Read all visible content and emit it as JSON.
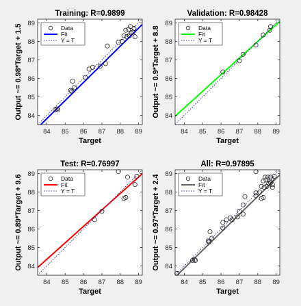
{
  "figure": {
    "background": "#f0f0f0"
  },
  "chart_data": [
    {
      "type": "scatter",
      "title": "Training: R=0.9899",
      "xlabel": "Target",
      "ylabel": "Output ~= 0.98*Target + 1.5",
      "xlim": [
        83.5,
        89.2
      ],
      "ylim": [
        83.5,
        89.2
      ],
      "xticks": [
        "84",
        "85",
        "86",
        "87",
        "88",
        "89"
      ],
      "yticks": [
        "84",
        "85",
        "86",
        "87",
        "88",
        "89"
      ],
      "fit": {
        "slope": 0.98,
        "intercept": 1.5,
        "color": "#0000ff"
      },
      "legend": {
        "position": "top-left",
        "entries": [
          "Data",
          "Fit",
          "Y = T"
        ]
      },
      "points": [
        [
          84.45,
          84.3
        ],
        [
          84.55,
          84.35
        ],
        [
          84.6,
          84.3
        ],
        [
          85.3,
          85.35
        ],
        [
          85.35,
          85.3
        ],
        [
          85.4,
          85.85
        ],
        [
          85.5,
          85.5
        ],
        [
          86.1,
          86.05
        ],
        [
          86.3,
          86.5
        ],
        [
          86.5,
          86.6
        ],
        [
          86.9,
          86.65
        ],
        [
          87.2,
          86.8
        ],
        [
          87.3,
          87.75
        ],
        [
          87.9,
          87.95
        ],
        [
          88.1,
          88.0
        ],
        [
          88.2,
          88.3
        ],
        [
          88.3,
          88.6
        ],
        [
          88.35,
          88.25
        ],
        [
          88.45,
          88.65
        ],
        [
          88.5,
          88.3
        ],
        [
          88.55,
          88.8
        ],
        [
          88.6,
          88.45
        ],
        [
          88.7,
          88.5
        ],
        [
          88.75,
          88.7
        ],
        [
          88.8,
          88.25
        ]
      ]
    },
    {
      "type": "scatter",
      "title": "Validation: R=0.98428",
      "xlabel": "Target",
      "ylabel": "Output ~= 0.9*Target + 8.8",
      "xlim": [
        83.5,
        89.2
      ],
      "ylim": [
        83.5,
        89.2
      ],
      "xticks": [
        "84",
        "85",
        "86",
        "87",
        "88",
        "89"
      ],
      "yticks": [
        "84",
        "85",
        "86",
        "87",
        "88",
        "89"
      ],
      "fit": {
        "slope": 0.9,
        "intercept": 8.8,
        "color": "#00ff00"
      },
      "legend": {
        "position": "top-left",
        "entries": [
          "Data",
          "Fit",
          "Y = T"
        ]
      },
      "points": [
        [
          86.1,
          86.35
        ],
        [
          87.0,
          86.95
        ],
        [
          87.2,
          87.3
        ],
        [
          87.9,
          87.8
        ],
        [
          88.3,
          88.35
        ],
        [
          88.65,
          88.6
        ],
        [
          88.7,
          88.8
        ]
      ]
    },
    {
      "type": "scatter",
      "title": "Test: R=0.76997",
      "xlabel": "Target",
      "ylabel": "Output ~= 0.89*Target + 9.6",
      "xlim": [
        83.5,
        89.2
      ],
      "ylim": [
        83.5,
        89.2
      ],
      "xticks": [
        "84",
        "85",
        "86",
        "87",
        "88",
        "89"
      ],
      "yticks": [
        "84",
        "85",
        "86",
        "87",
        "88",
        "89"
      ],
      "fit": {
        "slope": 0.89,
        "intercept": 9.6,
        "color": "#ff0000"
      },
      "legend": {
        "position": "top-left",
        "entries": [
          "Data",
          "Fit",
          "Y = T"
        ]
      },
      "points": [
        [
          86.6,
          86.5
        ],
        [
          87.0,
          86.95
        ],
        [
          87.9,
          89.1
        ],
        [
          88.2,
          87.65
        ],
        [
          88.3,
          87.7
        ],
        [
          88.4,
          88.8
        ],
        [
          88.8,
          88.4
        ],
        [
          88.9,
          88.85
        ]
      ]
    },
    {
      "type": "scatter",
      "title": "All: R=0.97895",
      "xlabel": "Target",
      "ylabel": "Output ~= 0.97*Target + 2.4",
      "xlim": [
        83.5,
        89.2
      ],
      "ylim": [
        83.5,
        89.2
      ],
      "xticks": [
        "84",
        "85",
        "86",
        "87",
        "88",
        "89"
      ],
      "yticks": [
        "84",
        "85",
        "86",
        "87",
        "88",
        "89"
      ],
      "fit": {
        "slope": 0.97,
        "intercept": 2.4,
        "color": "#666666"
      },
      "legend": {
        "position": "top-left",
        "entries": [
          "Data",
          "Fit",
          "Y = T"
        ]
      },
      "points": [
        [
          83.6,
          83.6
        ],
        [
          84.45,
          84.3
        ],
        [
          84.55,
          84.35
        ],
        [
          84.6,
          84.3
        ],
        [
          85.3,
          85.35
        ],
        [
          85.35,
          85.3
        ],
        [
          85.4,
          85.85
        ],
        [
          85.5,
          85.5
        ],
        [
          86.1,
          86.05
        ],
        [
          86.1,
          86.35
        ],
        [
          86.3,
          86.5
        ],
        [
          86.5,
          86.6
        ],
        [
          86.6,
          86.5
        ],
        [
          86.9,
          86.65
        ],
        [
          87.0,
          86.95
        ],
        [
          87.2,
          86.8
        ],
        [
          87.2,
          87.3
        ],
        [
          87.3,
          87.75
        ],
        [
          87.9,
          87.95
        ],
        [
          87.9,
          87.8
        ],
        [
          87.9,
          89.1
        ],
        [
          88.1,
          88.0
        ],
        [
          88.2,
          88.3
        ],
        [
          88.2,
          87.65
        ],
        [
          88.3,
          88.6
        ],
        [
          88.3,
          87.7
        ],
        [
          88.35,
          88.25
        ],
        [
          88.4,
          88.8
        ],
        [
          88.45,
          88.65
        ],
        [
          88.5,
          88.3
        ],
        [
          88.55,
          88.8
        ],
        [
          88.6,
          88.45
        ],
        [
          88.65,
          88.6
        ],
        [
          88.7,
          88.5
        ],
        [
          88.7,
          88.8
        ],
        [
          88.75,
          88.7
        ],
        [
          88.8,
          88.25
        ],
        [
          88.8,
          88.4
        ],
        [
          88.9,
          88.85
        ]
      ]
    }
  ]
}
